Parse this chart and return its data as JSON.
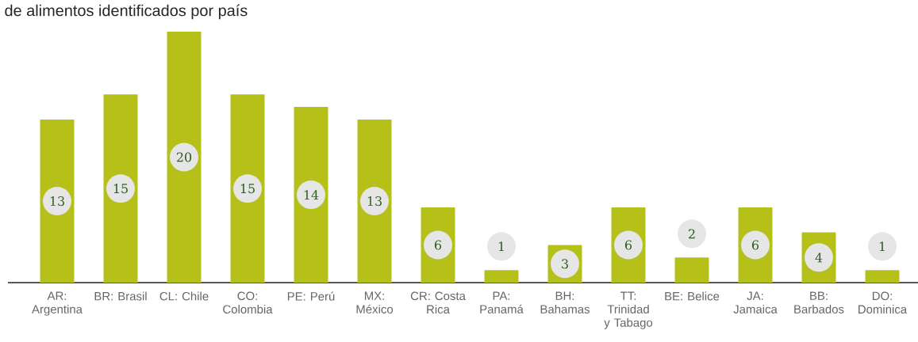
{
  "chart_data": {
    "type": "bar",
    "title": "de alimentos identificados por país",
    "categories": [
      "AR: Argentina",
      "BR: Brasil",
      "CL: Chile",
      "CO: Colombia",
      "PE: Perú",
      "MX: México",
      "CR: Costa Rica",
      "PA: Panamá",
      "BH: Bahamas",
      "TT: Trinidad y Tabago",
      "BE: Belice",
      "JA: Jamaica",
      "BB: Barbados",
      "DO: Dominica"
    ],
    "values": [
      13,
      15,
      20,
      15,
      14,
      13,
      6,
      1,
      3,
      6,
      2,
      6,
      4,
      1
    ],
    "color": "#b5c118",
    "data_labels": true
  }
}
